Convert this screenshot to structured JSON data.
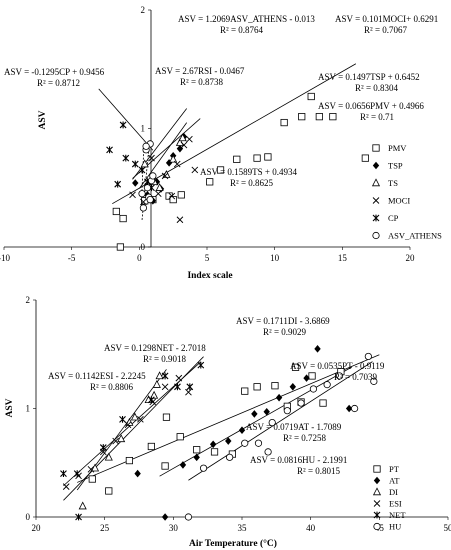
{
  "chart_data": [
    {
      "type": "scatter",
      "xlabel": "Index scale",
      "ylabel": "ASV",
      "xlim": [
        -10,
        20
      ],
      "ylim": [
        0,
        2
      ],
      "xticks": [
        "-10",
        "-5",
        "0",
        "5",
        "10",
        "15",
        "20"
      ],
      "yticks": [
        "0",
        "1",
        "2"
      ],
      "legend_position": "right",
      "series": [
        {
          "name": "PMV",
          "marker": "square-open",
          "points": [
            [
              -1.7,
              0.3
            ],
            [
              -1.2,
              0.24
            ],
            [
              0.4,
              0.39
            ],
            [
              1.0,
              0.4
            ],
            [
              2.2,
              0.43
            ],
            [
              2.5,
              0.4
            ],
            [
              3.1,
              0.44
            ],
            [
              5.2,
              0.55
            ],
            [
              6.0,
              0.65
            ],
            [
              7.2,
              0.74
            ],
            [
              8.7,
              0.75
            ],
            [
              9.5,
              0.76
            ],
            [
              10.7,
              1.05
            ],
            [
              12.0,
              1.1
            ],
            [
              12.7,
              1.27
            ],
            [
              13.3,
              1.1
            ],
            [
              14.3,
              1.1
            ],
            [
              16.7,
              0.75
            ],
            [
              -1.4,
              0.0
            ]
          ],
          "fit": {
            "slope": 0.0656,
            "intercept": 0.4966,
            "x": [
              -2,
              16
            ]
          }
        },
        {
          "name": "TSP",
          "marker": "diamond-filled",
          "points": [
            [
              -0.3,
              0.54
            ],
            [
              0.6,
              0.44
            ],
            [
              1.0,
              0.39
            ],
            [
              1.3,
              0.55
            ],
            [
              1.6,
              0.49
            ],
            [
              2.2,
              0.71
            ],
            [
              2.5,
              0.77
            ],
            [
              3.0,
              0.83
            ],
            [
              3.3,
              0.93
            ]
          ],
          "fit": {
            "slope": 0.1497,
            "intercept": 0.6452,
            "x": [
              -0.5,
              3.5
            ]
          }
        },
        {
          "name": "TS",
          "marker": "triangle-open",
          "points": [
            [
              0.4,
              0.7
            ],
            [
              1.1,
              0.55
            ],
            [
              1.5,
              0.5
            ],
            [
              2.0,
              0.61
            ],
            [
              2.5,
              0.74
            ],
            [
              3.0,
              0.88
            ],
            [
              3.2,
              0.92
            ]
          ],
          "fit": {
            "slope": 0.1589,
            "intercept": 0.4934,
            "x": [
              0,
              3.5
            ]
          }
        },
        {
          "name": "MOCI",
          "marker": "x",
          "points": [
            [
              -0.5,
              0.44
            ],
            [
              0.3,
              0.38
            ],
            [
              0.9,
              0.75
            ],
            [
              1.4,
              0.45
            ],
            [
              1.9,
              0.6
            ],
            [
              2.4,
              0.43
            ],
            [
              2.8,
              0.7
            ],
            [
              3.3,
              0.86
            ],
            [
              3.7,
              0.91
            ],
            [
              4.1,
              0.65
            ],
            [
              3.0,
              0.23
            ]
          ],
          "fit": {
            "slope": 0.101,
            "intercept": 0.6291,
            "x": [
              -0.5,
              4.5
            ]
          }
        },
        {
          "name": "CP",
          "marker": "star",
          "points": [
            [
              -2.2,
              0.82
            ],
            [
              -1.6,
              0.53
            ],
            [
              -1.0,
              0.75
            ],
            [
              -0.3,
              0.7
            ],
            [
              0.2,
              0.65
            ],
            [
              0.6,
              0.55
            ],
            [
              0.9,
              0.5
            ],
            [
              -1.2,
              1.03
            ]
          ],
          "fit": {
            "slope": -0.1295,
            "intercept": 0.9456,
            "x": [
              -3,
              1
            ]
          }
        },
        {
          "name": "ASV_ATHENS",
          "marker": "circle-open",
          "points": [
            [
              0.2,
              0.45
            ],
            [
              0.3,
              0.33
            ],
            [
              0.5,
              0.82
            ],
            [
              0.6,
              0.5
            ],
            [
              0.7,
              0.42
            ],
            [
              0.8,
              0.4
            ],
            [
              0.9,
              0.56
            ],
            [
              1.0,
              0.6
            ],
            [
              0.8,
              0.87
            ],
            [
              0.5,
              0.85
            ]
          ],
          "fit": {
            "slope": 1.2069,
            "intercept": -0.013,
            "x": [
              0.2,
              0.75
            ]
          }
        },
        {
          "name": "",
          "marker": "none",
          "points": [],
          "fit": {
            "slope": 2.67,
            "intercept": -0.0467,
            "x": [
              0.15,
              0.35
            ]
          }
        }
      ],
      "annotations": [
        {
          "text": "ASV = 1.2069ASV_ATHENS - 0.013",
          "r2": "R² = 0.8764"
        },
        {
          "text": "ASV = 0.101MOCI+ 0.6291",
          "r2": "R² = 0.7067"
        },
        {
          "text": "ASV = -0.1295CP + 0.9456",
          "r2": "R² = 0.8712"
        },
        {
          "text": "ASV = 2.67RSI - 0.0467",
          "r2": "R² = 0.8738"
        },
        {
          "text": "ASV = 0.1497TSP + 0.6452",
          "r2": "R² = 0.8304"
        },
        {
          "text": "ASV = 0.0656PMV + 0.4966",
          "r2": "R² = 0.71"
        },
        {
          "text": "ASV = 0.1589TS + 0.4934",
          "r2": "R² = 0.8625"
        }
      ]
    },
    {
      "type": "scatter",
      "xlabel": "Air Temperature (°C)",
      "ylabel": "ASV",
      "xlim": [
        20,
        50
      ],
      "ylim": [
        0,
        2
      ],
      "xticks": [
        "20",
        "25",
        "30",
        "35",
        "40",
        "45",
        "50"
      ],
      "yticks": [
        "0",
        "1",
        "2"
      ],
      "legend_position": "bottom-right",
      "series": [
        {
          "name": "PT",
          "marker": "square-open",
          "points": [
            [
              24.1,
              0.35
            ],
            [
              25.3,
              0.24
            ],
            [
              26.8,
              0.52
            ],
            [
              28.4,
              0.65
            ],
            [
              29.4,
              0.47
            ],
            [
              30.5,
              0.74
            ],
            [
              31.7,
              0.62
            ],
            [
              33.0,
              0.6
            ],
            [
              34.3,
              0.58
            ],
            [
              35.2,
              1.16
            ],
            [
              36.1,
              1.2
            ],
            [
              37.4,
              1.21
            ],
            [
              38.3,
              1.02
            ],
            [
              39.3,
              1.06
            ],
            [
              40.1,
              1.3
            ],
            [
              40.9,
              1.05
            ],
            [
              42.2,
              1.34
            ],
            [
              29.5,
              0.92
            ],
            [
              38.9,
              1.38
            ]
          ],
          "fit": {
            "slope": 0.0535,
            "intercept": -0.9119,
            "x": [
              23,
              45
            ]
          }
        },
        {
          "name": "AT",
          "marker": "diamond-filled",
          "points": [
            [
              27.4,
              0.4
            ],
            [
              29.4,
              0.0
            ],
            [
              30.7,
              0.48
            ],
            [
              31.7,
              0.55
            ],
            [
              32.9,
              0.67
            ],
            [
              34.0,
              0.7
            ],
            [
              35.0,
              0.8
            ],
            [
              35.9,
              0.95
            ],
            [
              36.8,
              0.97
            ],
            [
              37.7,
              1.1
            ],
            [
              38.7,
              1.2
            ],
            [
              39.7,
              1.28
            ],
            [
              40.5,
              1.55
            ],
            [
              42.8,
              1.0
            ]
          ],
          "fit": {
            "slope": 0.0719,
            "intercept": -1.7089,
            "x": [
              29,
              43
            ]
          }
        },
        {
          "name": "DI",
          "marker": "triangle-open",
          "points": [
            [
              23.4,
              0.1
            ],
            [
              24.3,
              0.45
            ],
            [
              25.3,
              0.55
            ],
            [
              26.2,
              0.72
            ],
            [
              26.8,
              0.87
            ],
            [
              27.2,
              0.92
            ],
            [
              28.2,
              1.08
            ],
            [
              28.6,
              1.12
            ],
            [
              29.0,
              1.3
            ],
            [
              28.8,
              1.22
            ]
          ],
          "fit": {
            "slope": 0.1711,
            "intercept": -3.6869,
            "x": [
              23,
              29.5
            ]
          }
        },
        {
          "name": "ESI",
          "marker": "x",
          "points": [
            [
              22.2,
              0.28
            ],
            [
              23.1,
              0.38
            ],
            [
              24.0,
              0.44
            ],
            [
              24.9,
              0.6
            ],
            [
              25.8,
              0.7
            ],
            [
              26.7,
              0.85
            ],
            [
              27.6,
              0.9
            ],
            [
              28.5,
              1.06
            ],
            [
              29.4,
              1.2
            ],
            [
              30.4,
              1.28
            ],
            [
              31.1,
              1.15
            ]
          ],
          "fit": {
            "slope": 0.1142,
            "intercept": -2.2245,
            "x": [
              22,
              32
            ]
          }
        },
        {
          "name": "NET",
          "marker": "star",
          "points": [
            [
              22.0,
              0.4
            ],
            [
              23.0,
              0.4
            ],
            [
              24.9,
              0.64
            ],
            [
              26.3,
              0.9
            ],
            [
              28.4,
              1.08
            ],
            [
              29.4,
              1.3
            ],
            [
              30.3,
              1.2
            ],
            [
              31.2,
              1.2
            ],
            [
              32.0,
              1.4
            ],
            [
              23.1,
              0.0
            ]
          ],
          "fit": {
            "slope": 0.1298,
            "intercept": -2.7018,
            "x": [
              22,
              32.2
            ]
          }
        },
        {
          "name": "HU",
          "marker": "circle-open",
          "points": [
            [
              31.1,
              0.0
            ],
            [
              32.2,
              0.45
            ],
            [
              34.1,
              0.55
            ],
            [
              35.2,
              0.68
            ],
            [
              36.2,
              0.68
            ],
            [
              37.2,
              0.87
            ],
            [
              38.3,
              0.98
            ],
            [
              39.3,
              1.05
            ],
            [
              40.2,
              1.18
            ],
            [
              41.2,
              1.22
            ],
            [
              42.1,
              1.3
            ],
            [
              43.2,
              1.0
            ],
            [
              44.2,
              1.48
            ],
            [
              36.9,
              0.6
            ],
            [
              44.6,
              1.25
            ]
          ],
          "fit": {
            "slope": 0.0816,
            "intercept": -2.1991,
            "x": [
              31.1,
              44.5
            ]
          }
        }
      ],
      "annotations": [
        {
          "text": "ASV = 0.1711DI - 3.6869",
          "r2": "R² = 0.9029"
        },
        {
          "text": "ASV = 0.1298NET - 2.7018",
          "r2": "R² = 0.9018"
        },
        {
          "text": "ASV = 0.1142ESI - 2.2245",
          "r2": "R² = 0.8806"
        },
        {
          "text": "ASV = 0.0535PT - 0.9119",
          "r2": "R² = 0.7039"
        },
        {
          "text": "ASV = 0.0719AT - 1.7089",
          "r2": "R² = 0.7258"
        },
        {
          "text": "ASV = 0.0816HU - 2.1991",
          "r2": "R² = 0.8015"
        }
      ]
    }
  ]
}
